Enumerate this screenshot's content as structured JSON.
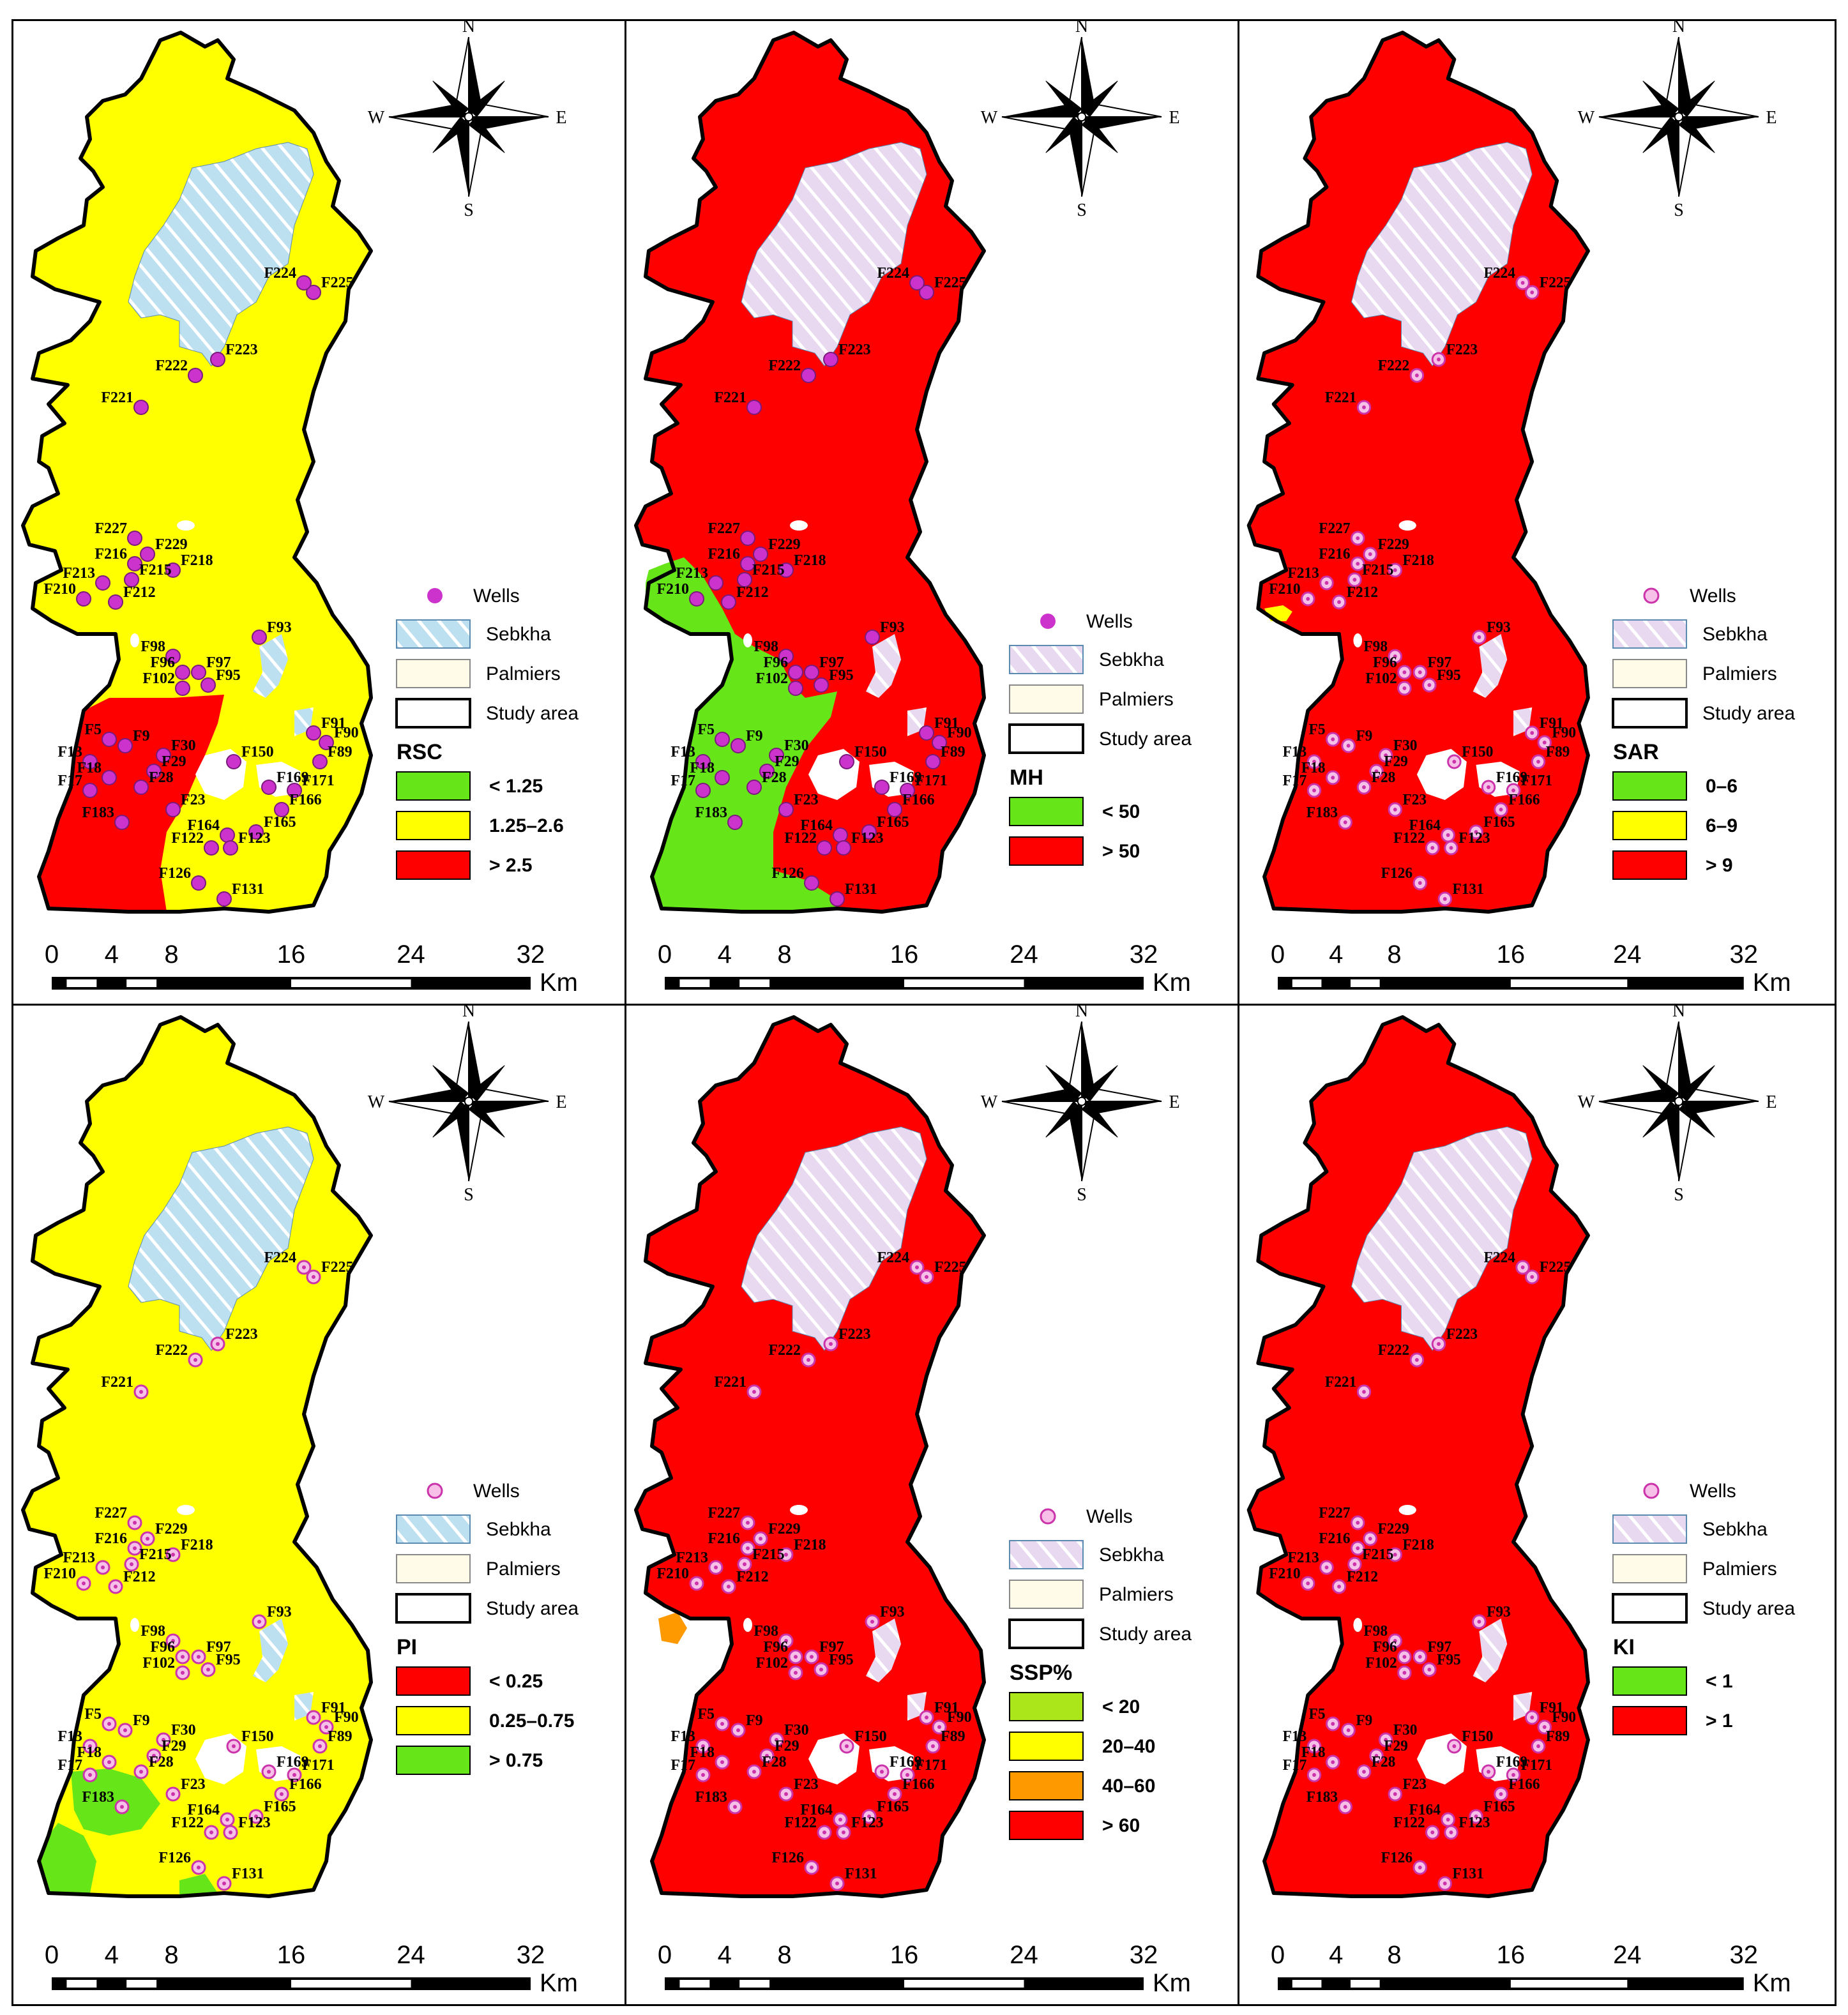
{
  "colors": {
    "red": "#ff0000",
    "yellow": "#ffff00",
    "green": "#66e619",
    "orange": "#ff9900",
    "lime": "#aae619",
    "well": "#cc33cc",
    "sebkha": "#bde0f0"
  },
  "compass": {
    "n": "N",
    "s": "S",
    "e": "E",
    "w": "W"
  },
  "scale": {
    "ticks": [
      "0",
      "4",
      "8",
      "16",
      "24",
      "32"
    ],
    "unit": "Km"
  },
  "legend_common": {
    "wells": "Wells",
    "sebkha": "Sebkha",
    "palmiers": "Palmiers",
    "study_area": "Study area"
  },
  "panels": [
    {
      "id": "rsc",
      "title": "RSC",
      "base": "yellow",
      "classes": [
        {
          "label": "< 1.25",
          "color": "#66e619"
        },
        {
          "label": "1.25–2.6",
          "color": "#ffff00"
        },
        {
          "label": "> 2.5",
          "color": "#ff0000"
        }
      ]
    },
    {
      "id": "mh",
      "title": "MH",
      "base": "red",
      "classes": [
        {
          "label": "< 50",
          "color": "#66e619"
        },
        {
          "label": "> 50",
          "color": "#ff0000"
        }
      ]
    },
    {
      "id": "sar",
      "title": "SAR",
      "base": "red",
      "classes": [
        {
          "label": "0–6",
          "color": "#66e619"
        },
        {
          "label": "6–9",
          "color": "#ffff00"
        },
        {
          "label": "> 9",
          "color": "#ff0000"
        }
      ]
    },
    {
      "id": "pi",
      "title": "PI",
      "base": "yellow",
      "classes": [
        {
          "label": "< 0.25",
          "color": "#ff0000"
        },
        {
          "label": "0.25–0.75",
          "color": "#ffff00"
        },
        {
          "label": "> 0.75",
          "color": "#66e619"
        }
      ]
    },
    {
      "id": "ssp",
      "title": "SSP%",
      "base": "red",
      "classes": [
        {
          "label": "< 20",
          "color": "#aae619"
        },
        {
          "label": "20–40",
          "color": "#ffff00"
        },
        {
          "label": "40–60",
          "color": "#ff9900"
        },
        {
          "label": "> 60",
          "color": "#ff0000"
        }
      ]
    },
    {
      "id": "ki",
      "title": "KI",
      "base": "red",
      "classes": [
        {
          "label": "< 1",
          "color": "#66e619"
        },
        {
          "label": "> 1",
          "color": "#ff0000"
        }
      ]
    }
  ],
  "wells": [
    "F225",
    "F224",
    "F223",
    "F222",
    "F221",
    "F227",
    "F229",
    "F218",
    "F216",
    "F215",
    "F213",
    "F210",
    "F212",
    "F98",
    "F93",
    "F96",
    "F97",
    "F102",
    "F95",
    "F91",
    "F90",
    "F89",
    "F150",
    "F169",
    "F171",
    "F166",
    "F165",
    "F164",
    "F5",
    "F9",
    "F30",
    "F13",
    "F29",
    "F28",
    "F17",
    "F18",
    "F23",
    "F183",
    "F122",
    "F123",
    "F126",
    "F131"
  ]
}
